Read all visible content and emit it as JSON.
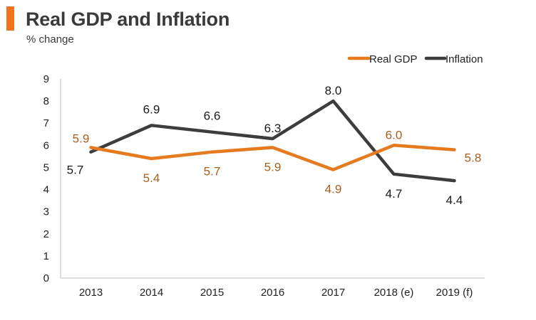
{
  "title": "Real GDP and Inflation",
  "subtitle": "% change",
  "colors": {
    "accent": "#f0731e",
    "real_gdp": "#e57a1f",
    "inflation": "#3d3d3d",
    "gdp_label": "#a85e1c",
    "inflation_label": "#1a1a1a",
    "axis": "#bfbfbf"
  },
  "chart_data": {
    "type": "line",
    "title": "Real GDP and Inflation",
    "subtitle": "% change",
    "xlabel": "",
    "ylabel": "",
    "ylim": [
      0,
      9
    ],
    "yticks": [
      "0",
      "1",
      "2",
      "3",
      "4",
      "5",
      "6",
      "7",
      "8",
      "9"
    ],
    "grid": false,
    "legend_position": "top-right",
    "categories": [
      "2013",
      "2014",
      "2015",
      "2016",
      "2017",
      "2018 (e)",
      "2019 (f)"
    ],
    "series": [
      {
        "name": "Real GDP",
        "values": [
          5.9,
          5.4,
          5.7,
          5.9,
          4.9,
          6.0,
          5.8
        ],
        "labels": [
          "5.9",
          "5.4",
          "5.7",
          "5.9",
          "4.9",
          "6.0",
          "5.8"
        ]
      },
      {
        "name": "Inflation",
        "values": [
          5.7,
          6.9,
          6.6,
          6.3,
          8.0,
          4.7,
          4.4
        ],
        "labels": [
          "5.7",
          "6.9",
          "6.6",
          "6.3",
          "8.0",
          "4.7",
          "4.4"
        ]
      }
    ]
  }
}
